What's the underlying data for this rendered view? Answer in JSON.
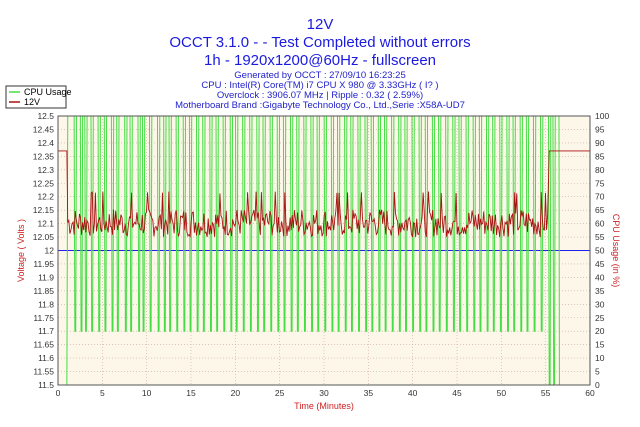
{
  "header": {
    "title": "12V",
    "line1": "OCCT 3.1.0 -  - Test Completed without errors",
    "line2": "1h - 1920x1200@60Hz - fullscreen",
    "info": [
      "Generated by OCCT : 27/09/10 16:23:25",
      "CPU : Intel(R) Core(TM) i7 CPU X 980 @ 3.33GHz (  I? )",
      "Overclock : 3906.07 MHz | Ripple : 0.32 ( 2.59%)",
      "Motherboard Brand :Gigabyte Technology Co., Ltd.,Serie :X58A-UD7"
    ]
  },
  "colors": {
    "cpu": "#44dd44",
    "volt": "#aa1111",
    "ref": "#2222ee",
    "plotbg": "#fdf7ea",
    "grid": "#c9a99a"
  },
  "chart_data": {
    "type": "line",
    "xlabel": "Time (Minutes)",
    "ylabel": "Voltage ( Volts )",
    "y2label": "CPU Usage (in %)",
    "xlim": [
      0,
      60
    ],
    "ylim": [
      11.5,
      12.5
    ],
    "y2lim": [
      0,
      100
    ],
    "xticks": [
      0,
      5,
      10,
      15,
      20,
      25,
      30,
      35,
      40,
      45,
      50,
      55,
      60
    ],
    "yticks": [
      "12.5",
      "12.45",
      "12.4",
      "12.35",
      "12.3",
      "12.25",
      "12.2",
      "12.15",
      "12.1",
      "12.05",
      "12",
      "11.95",
      "11.9",
      "11.85",
      "11.8",
      "11.75",
      "11.7",
      "11.65",
      "11.6",
      "11.55",
      "11.5"
    ],
    "y2ticks": [
      100,
      95,
      90,
      85,
      80,
      75,
      70,
      65,
      60,
      55,
      50,
      45,
      40,
      35,
      30,
      25,
      20,
      15,
      10,
      5,
      0
    ],
    "reference_line": 12.0,
    "legend": {
      "position": "top-left",
      "entries": [
        "CPU Usage",
        "12V"
      ]
    },
    "grid": true,
    "series": [
      {
        "name": "CPU Usage",
        "axis": "right",
        "baseline": 0,
        "x": [
          0.0,
          1.0,
          1.05,
          1.1,
          1.15,
          55.3,
          55.35,
          56.5,
          56.55,
          60.0
        ],
        "y": [
          0,
          0,
          50,
          100,
          100,
          100,
          100,
          100,
          0,
          0
        ],
        "dips": [
          1.9,
          2.6,
          3.1,
          3.8,
          4.6,
          5.3,
          6.1,
          6.7,
          7.6,
          8.2,
          9.1,
          9.6,
          10.4,
          11.3,
          12.0,
          12.6,
          13.4,
          14.2,
          14.9,
          15.7,
          16.4,
          17.2,
          17.9,
          18.7,
          19.5,
          20.1,
          20.9,
          21.7,
          22.5,
          23.2,
          24.0,
          24.8,
          25.5,
          26.3,
          27.0,
          27.8,
          28.6,
          29.3,
          30.1,
          30.9,
          31.6,
          32.4,
          33.1,
          33.9,
          34.7,
          35.4,
          36.2,
          36.9,
          37.7,
          38.5,
          39.2,
          40.0,
          40.8,
          41.5,
          42.3,
          43.0,
          43.8,
          44.6,
          45.3,
          46.1,
          46.9,
          47.6,
          48.4,
          49.1,
          49.9,
          50.7,
          51.4,
          52.2,
          52.9,
          53.7,
          54.5,
          55.4,
          55.9
        ],
        "dip_values": [
          20,
          20,
          20,
          20,
          20,
          20,
          20,
          20,
          20,
          20,
          20,
          20,
          20,
          20,
          20,
          20,
          20,
          20,
          20,
          20,
          20,
          20,
          20,
          20,
          20,
          20,
          20,
          20,
          20,
          20,
          20,
          20,
          20,
          20,
          20,
          20,
          20,
          20,
          20,
          20,
          20,
          20,
          20,
          20,
          20,
          20,
          20,
          20,
          20,
          20,
          20,
          20,
          20,
          20,
          20,
          20,
          20,
          20,
          20,
          20,
          20,
          20,
          20,
          20,
          20,
          20,
          20,
          20,
          20,
          20,
          20,
          0,
          0
        ]
      },
      {
        "name": "12V",
        "axis": "left",
        "x": [
          0.0,
          1.0,
          1.1,
          60.0
        ],
        "y": [
          12.37,
          12.37,
          12.1,
          12.37
        ],
        "note_range": [
          12.05,
          12.16
        ]
      }
    ]
  }
}
